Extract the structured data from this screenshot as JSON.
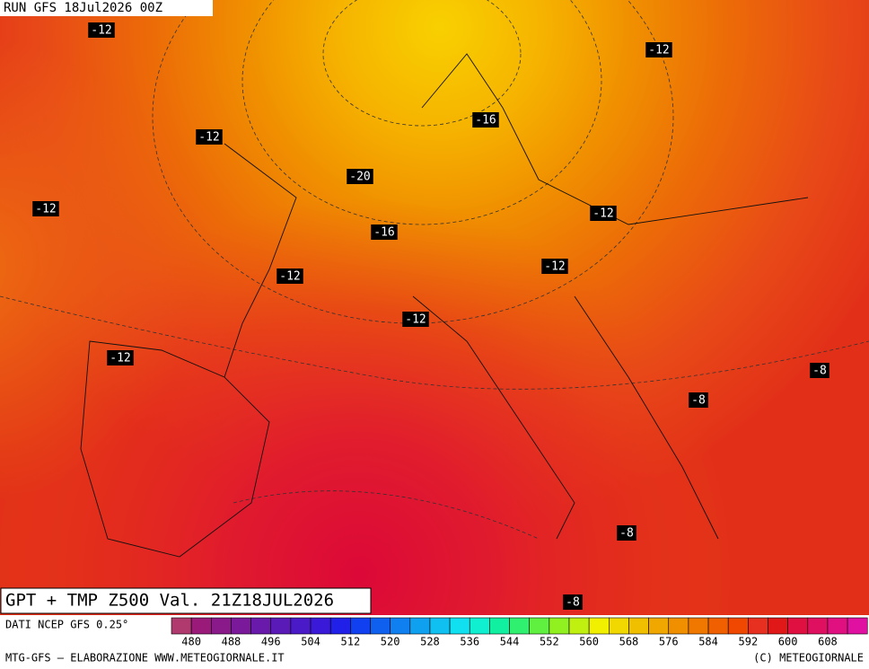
{
  "header": {
    "run": "RUN GFS 18Jul2026 00Z"
  },
  "map": {
    "title": "GPT + TMP Z500 Val. 21Z18JUL2026",
    "labels": [
      "-12",
      "-12",
      "-16",
      "-12",
      "-20",
      "-12",
      "-12",
      "-16",
      "-12",
      "-12",
      "-12",
      "-12",
      "-8",
      "-8",
      "-8",
      "-8"
    ]
  },
  "colorbar": {
    "source": "DATI NCEP GFS 0.25°",
    "colors": [
      "#b03a6e",
      "#9a1a7a",
      "#8a1a8a",
      "#7a1a9a",
      "#6a1aaa",
      "#5a1ab8",
      "#4a1ac8",
      "#3a1ad8",
      "#2020e8",
      "#1040f0",
      "#1060f0",
      "#1080f0",
      "#10a0f0",
      "#10c0f0",
      "#10e0f0",
      "#10f0d0",
      "#10f0a0",
      "#30f070",
      "#60f040",
      "#90f020",
      "#c0f010",
      "#f0f000",
      "#f0d800",
      "#f0c000",
      "#f0a800",
      "#f09000",
      "#f07800",
      "#f06000",
      "#f04800",
      "#e83020",
      "#e01818",
      "#e01040",
      "#e01060",
      "#e01080",
      "#e010a0"
    ],
    "ticks": [
      480,
      488,
      496,
      504,
      512,
      520,
      528,
      536,
      544,
      552,
      560,
      568,
      576,
      584,
      592,
      600,
      608
    ]
  },
  "footer": {
    "credit": "MTG-GFS — ELABORAZIONE WWW.METEOGIORNALE.IT",
    "copyright": "(C) METEOGIORNALE"
  }
}
